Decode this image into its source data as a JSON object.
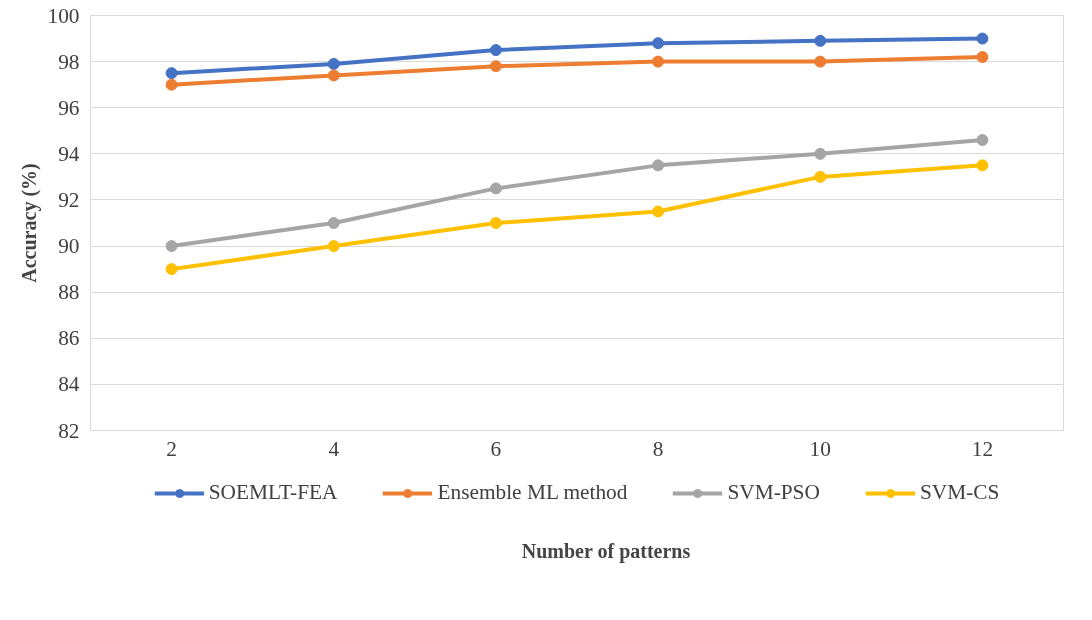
{
  "chart_data": {
    "type": "line",
    "xlabel": "Number of patterns",
    "ylabel": "Accuracy (%)",
    "categories": [
      "2",
      "4",
      "6",
      "8",
      "10",
      "12"
    ],
    "ylim": [
      82,
      100
    ],
    "yticks": [
      82,
      84,
      86,
      88,
      90,
      92,
      94,
      96,
      98,
      100
    ],
    "grid": "y",
    "legend": "bottom",
    "marker": "circle",
    "line_style": "solid",
    "series": [
      {
        "name": "SOEMLT-FEA",
        "color": "#4472c4",
        "values": [
          97.5,
          97.9,
          98.5,
          98.8,
          98.9,
          99.0
        ]
      },
      {
        "name": "Ensemble ML method",
        "color": "#ed7d31",
        "values": [
          97.0,
          97.4,
          97.8,
          98.0,
          98.0,
          98.2
        ]
      },
      {
        "name": "SVM-PSO",
        "color": "#a5a5a5",
        "values": [
          90.0,
          91.0,
          92.5,
          93.5,
          94.0,
          94.6
        ]
      },
      {
        "name": "SVM-CS",
        "color": "#ffc000",
        "values": [
          89.0,
          90.0,
          91.0,
          91.5,
          93.0,
          93.5
        ]
      }
    ]
  }
}
